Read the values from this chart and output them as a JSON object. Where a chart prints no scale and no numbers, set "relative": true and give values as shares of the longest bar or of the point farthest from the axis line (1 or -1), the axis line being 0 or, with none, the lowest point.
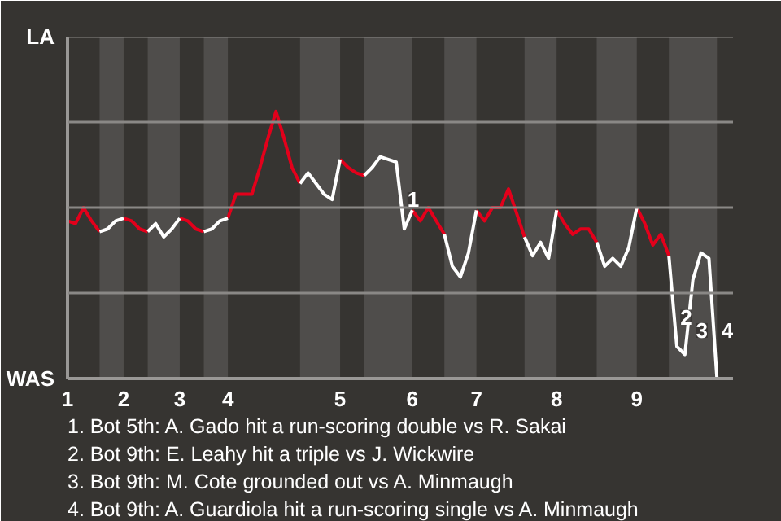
{
  "chart_data": {
    "type": "line",
    "relative": true,
    "categories": [
      "1",
      null,
      null,
      null,
      null,
      null,
      null,
      "2",
      null,
      null,
      null,
      null,
      null,
      null,
      "3",
      null,
      null,
      null,
      null,
      null,
      "4",
      null,
      null,
      null,
      null,
      null,
      null,
      null,
      null,
      null,
      null,
      null,
      null,
      null,
      "5",
      null,
      null,
      null,
      null,
      null,
      null,
      null,
      null,
      "6",
      null,
      null,
      null,
      null,
      null,
      null,
      null,
      "7",
      null,
      null,
      null,
      null,
      null,
      null,
      null,
      null,
      null,
      "8",
      null,
      null,
      null,
      null,
      null,
      null,
      null,
      null,
      null,
      "9",
      null,
      null,
      null,
      null,
      null,
      null,
      null,
      null,
      null,
      null
    ],
    "series": [
      {
        "color": "#e3001b",
        "values": [
          0.59,
          0.58,
          0.64,
          0.59,
          0.55,
          null,
          null,
          0.6,
          0.59,
          0.56,
          0.55,
          null,
          null,
          null,
          0.6,
          0.59,
          0.56,
          0.55,
          null,
          null,
          0.6,
          0.69,
          0.69,
          0.69,
          0.79,
          0.9,
          1,
          0.9,
          0.79,
          0.73,
          null,
          null,
          null,
          null,
          0.82,
          0.79,
          0.77,
          0.76,
          null,
          null,
          null,
          null,
          null,
          0.63,
          0.59,
          0.64,
          0.59,
          0.54,
          null,
          null,
          null,
          0.63,
          0.59,
          0.64,
          0.64,
          0.71,
          0.62,
          0.53,
          null,
          null,
          null,
          0.63,
          0.58,
          0.54,
          0.56,
          0.56,
          0.51,
          null,
          null,
          null,
          null,
          0.64,
          0.58,
          0.5,
          0.54,
          0.46,
          null,
          null,
          null,
          null,
          null,
          null
        ]
      },
      {
        "color": "#ffffff",
        "values": [
          null,
          null,
          null,
          null,
          0.55,
          0.56,
          0.59,
          0.6,
          null,
          null,
          0.55,
          0.58,
          0.53,
          0.56,
          0.6,
          null,
          null,
          0.55,
          0.56,
          0.59,
          0.6,
          null,
          null,
          null,
          null,
          null,
          null,
          null,
          null,
          0.73,
          0.77,
          0.73,
          0.69,
          0.67,
          0.82,
          null,
          null,
          0.76,
          0.79,
          0.83,
          0.82,
          0.81,
          0.56,
          0.63,
          null,
          null,
          null,
          0.54,
          0.42,
          0.38,
          0.47,
          0.63,
          null,
          null,
          null,
          null,
          null,
          0.53,
          0.46,
          0.51,
          0.45,
          0.63,
          null,
          null,
          null,
          null,
          0.51,
          0.42,
          0.45,
          0.42,
          0.49,
          0.64,
          null,
          null,
          null,
          0.46,
          0.12,
          0.09,
          0.37,
          0.47,
          0.45,
          0
        ]
      }
    ],
    "grid": "y",
    "annotations": [
      "LA",
      "WAS",
      {
        "text": "1",
        "y": 0.67
      },
      {
        "text": "2",
        "y": 0.23
      },
      {
        "text": "3",
        "y": 0.18
      },
      {
        "text": "4",
        "y": 0.18
      },
      "1. Bot 5th: A. Gado hit a run-scoring double vs R. Sakai",
      "2. Bot 9th: E. Leahy hit a triple vs J. Wickwire",
      "3. Bot 9th: M. Cote grounded out vs A. Minmaugh",
      "4. Bot 9th: A. Guardiola hit a run-scoring single vs A. Minmaugh"
    ]
  }
}
